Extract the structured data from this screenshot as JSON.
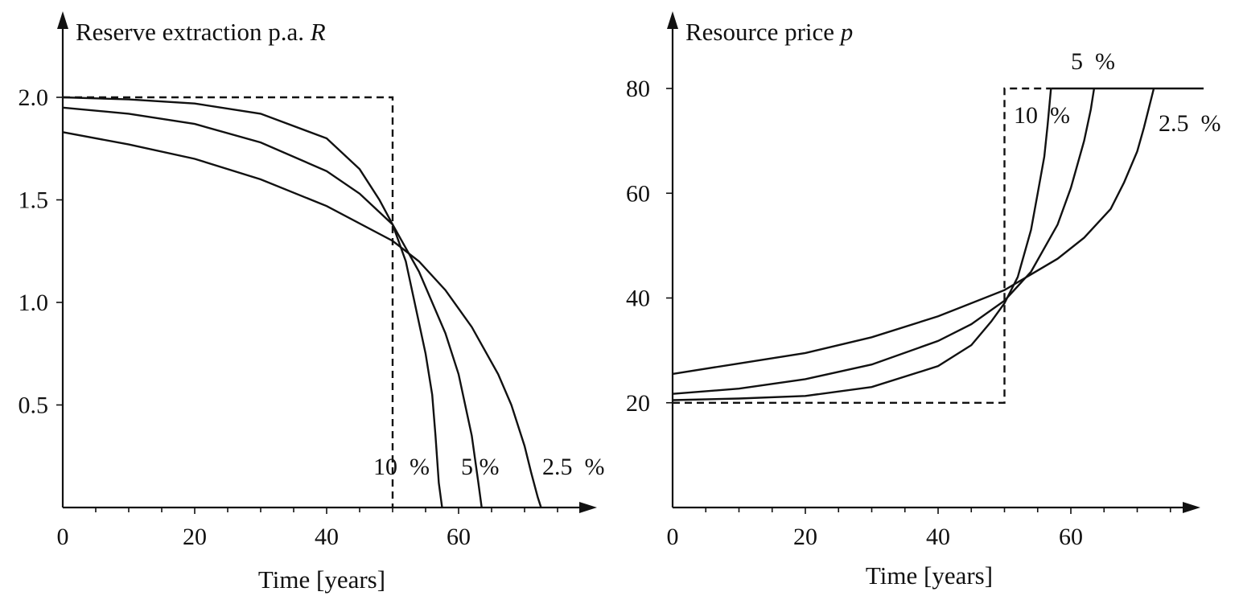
{
  "chart_data": [
    {
      "type": "line",
      "title": "Reserve extraction p.a.",
      "title_symbol": "R",
      "xlabel": "Time [years]",
      "ylabel": "",
      "xlim": [
        0,
        80
      ],
      "ylim": [
        0,
        2.3
      ],
      "x_ticks": [
        "0",
        "20",
        "40",
        "60"
      ],
      "y_ticks": [
        "0.5",
        "1.0",
        "1.5",
        "2.0"
      ],
      "grid": false,
      "series": [
        {
          "name": "10 %",
          "style": "solid",
          "x": [
            0,
            10,
            20,
            30,
            40,
            45,
            48,
            50,
            52,
            54,
            55,
            56,
            56.5,
            57,
            57.5
          ],
          "y": [
            2.0,
            1.99,
            1.97,
            1.92,
            1.8,
            1.65,
            1.5,
            1.38,
            1.2,
            0.9,
            0.75,
            0.55,
            0.35,
            0.12,
            0
          ]
        },
        {
          "name": "5 %",
          "style": "solid",
          "x": [
            0,
            10,
            20,
            30,
            40,
            45,
            50,
            54,
            58,
            60,
            62,
            63,
            63.5
          ],
          "y": [
            1.95,
            1.92,
            1.87,
            1.78,
            1.64,
            1.53,
            1.38,
            1.15,
            0.85,
            0.65,
            0.35,
            0.12,
            0
          ]
        },
        {
          "name": "2.5 %",
          "style": "solid",
          "x": [
            0,
            10,
            20,
            30,
            40,
            50,
            54,
            58,
            62,
            66,
            68,
            70,
            71,
            72,
            72.5
          ],
          "y": [
            1.83,
            1.77,
            1.7,
            1.6,
            1.47,
            1.3,
            1.2,
            1.06,
            0.88,
            0.65,
            0.5,
            0.3,
            0.17,
            0.05,
            0
          ]
        },
        {
          "name": "",
          "style": "dashed",
          "x": [
            0,
            50,
            50
          ],
          "y": [
            2.0,
            2.0,
            0
          ]
        }
      ],
      "annotations": [
        "10  %",
        "5 %",
        "2.5  %"
      ]
    },
    {
      "type": "line",
      "title": "Resource price",
      "title_symbol": "p",
      "xlabel": "Time [years]",
      "ylabel": "",
      "xlim": [
        0,
        80
      ],
      "ylim": [
        0,
        90
      ],
      "x_ticks": [
        "0",
        "20",
        "40",
        "60"
      ],
      "y_ticks": [
        "20",
        "40",
        "60",
        "80"
      ],
      "grid": false,
      "series": [
        {
          "name": "10 %",
          "style": "solid",
          "x": [
            0,
            10,
            20,
            30,
            40,
            45,
            48,
            50,
            52,
            54,
            55,
            56,
            56.5,
            57
          ],
          "y": [
            20.5,
            20.8,
            21.3,
            23.0,
            27.0,
            31.0,
            35.5,
            39.0,
            44.0,
            53.0,
            60.0,
            67.0,
            73.0,
            80.0
          ]
        },
        {
          "name": "5 %",
          "style": "solid",
          "x": [
            0,
            10,
            20,
            30,
            40,
            45,
            50,
            54,
            58,
            60,
            62,
            63,
            63.5
          ],
          "y": [
            21.7,
            22.7,
            24.5,
            27.3,
            31.8,
            35.0,
            39.5,
            45.0,
            54.0,
            61.0,
            70.0,
            76.0,
            80.0
          ]
        },
        {
          "name": "2.5 %",
          "style": "solid",
          "x": [
            0,
            10,
            20,
            30,
            40,
            50,
            54,
            58,
            62,
            66,
            68,
            70,
            71,
            72,
            72.5
          ],
          "y": [
            25.5,
            27.5,
            29.5,
            32.5,
            36.5,
            41.5,
            44.5,
            47.5,
            51.5,
            57.0,
            62.0,
            68.0,
            72.5,
            77.5,
            80.0
          ]
        },
        {
          "name": "",
          "style": "solid",
          "x": [
            57,
            80
          ],
          "y": [
            80,
            80
          ]
        },
        {
          "name": "",
          "style": "dashed",
          "x": [
            0,
            50,
            50,
            57
          ],
          "y": [
            20,
            20,
            80,
            80
          ]
        }
      ],
      "annotations": [
        "10  %",
        "5  %",
        "2.5  %"
      ]
    }
  ]
}
